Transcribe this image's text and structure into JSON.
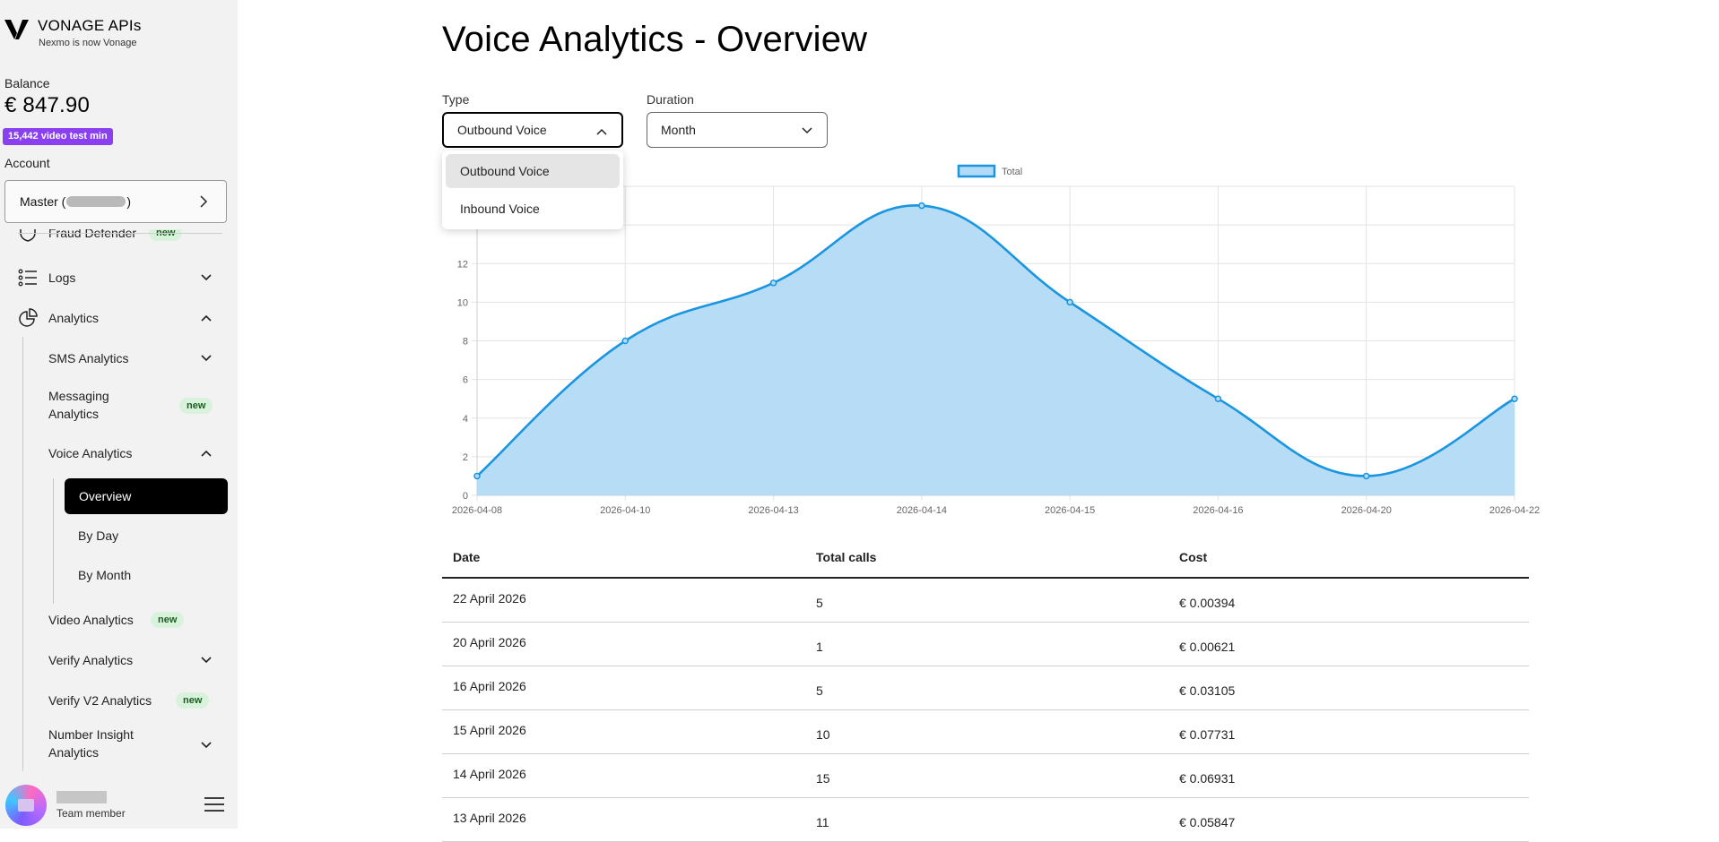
{
  "brand": {
    "title": "VONAGE APIs",
    "subtitle": "Nexmo is now Vonage",
    "logo_icon": "vonage-v-logo"
  },
  "sidebar": {
    "balance_label": "Balance",
    "balance_value": "€ 847.90",
    "video_badge": "15,442 video test min",
    "account_label": "Account",
    "account_prefix": "Master (",
    "account_suffix": ")",
    "nav": {
      "fraud": {
        "label": "Fraud Defender",
        "badge": "new",
        "icon": "shield-icon"
      },
      "logs": {
        "label": "Logs",
        "icon": "list-icon"
      },
      "analytics": {
        "label": "Analytics",
        "icon": "pie-chart-icon"
      },
      "sms": {
        "label": "SMS Analytics"
      },
      "messaging": {
        "label_1": "Messaging",
        "label_2": "Analytics",
        "badge": "new"
      },
      "voice": {
        "label": "Voice Analytics"
      },
      "overview": {
        "label": "Overview"
      },
      "by_day": {
        "label": "By Day"
      },
      "by_month": {
        "label": "By Month"
      },
      "video": {
        "label": "Video Analytics",
        "badge": "new"
      },
      "verify": {
        "label": "Verify Analytics"
      },
      "verify_v2": {
        "label": "Verify V2 Analytics",
        "badge": "new"
      },
      "number_insight": {
        "label_1": "Number Insight",
        "label_2": "Analytics"
      }
    },
    "user": {
      "role": "Team member"
    }
  },
  "main": {
    "title": "Voice Analytics - Overview",
    "type_label": "Type",
    "type_value": "Outbound Voice",
    "duration_label": "Duration",
    "duration_value": "Month",
    "type_options": [
      "Outbound Voice",
      "Inbound Voice"
    ]
  },
  "colors": {
    "accent": "#1a95e0",
    "fill": "#b3dbf6",
    "active_nav": "#000000",
    "badge_purple": "#8a3ff0",
    "new_pill": "#d9f2dc"
  },
  "chart_data": {
    "type": "area",
    "x": [
      "2026-04-08",
      "2026-04-10",
      "2026-04-13",
      "2026-04-14",
      "2026-04-15",
      "2026-04-16",
      "2026-04-20",
      "2026-04-22"
    ],
    "series": [
      {
        "name": "Total",
        "values": [
          1,
          8,
          11,
          15,
          10,
          5,
          1,
          5
        ]
      }
    ],
    "y_ticks": [
      0,
      2,
      4,
      6,
      8,
      10,
      12
    ],
    "ylim": [
      0,
      16
    ],
    "grid": true,
    "legend": "top-center"
  },
  "table": {
    "headers": [
      "Date",
      "Total calls",
      "Cost"
    ],
    "rows": [
      [
        "22 April 2026",
        "5",
        "€ 0.00394"
      ],
      [
        "20 April 2026",
        "1",
        "€ 0.00621"
      ],
      [
        "16 April 2026",
        "5",
        "€ 0.03105"
      ],
      [
        "15 April 2026",
        "10",
        "€ 0.07731"
      ],
      [
        "14 April 2026",
        "15",
        "€ 0.06931"
      ],
      [
        "13 April 2026",
        "11",
        "€ 0.05847"
      ]
    ]
  }
}
